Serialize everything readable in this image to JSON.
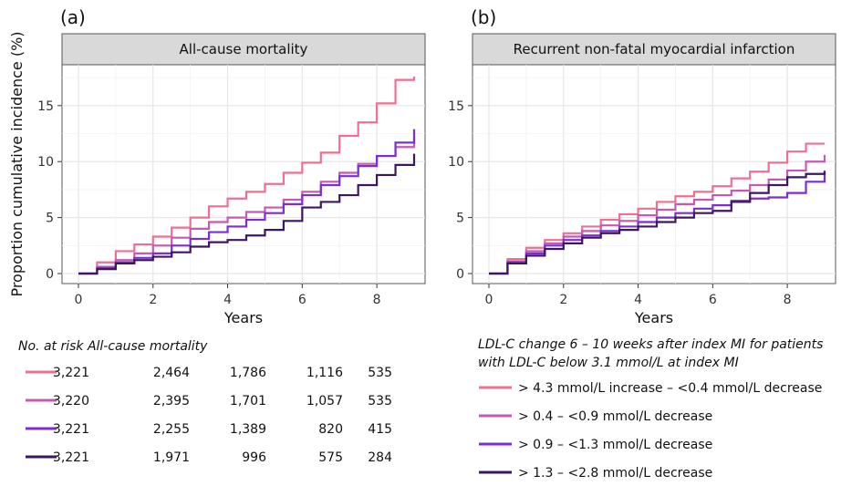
{
  "colors": [
    "#ee6f92",
    "#c45ab2",
    "#7a2fd6",
    "#3c1760"
  ],
  "y_axis_label": "Proportion cumulative incidence (%)",
  "chart_data": [
    {
      "type": "line",
      "panel": "(a)",
      "title": "All-cause mortality",
      "xlabel": "Years",
      "ylabel": "Proportion cumulative incidence (%)",
      "xlim": [
        0,
        9
      ],
      "ylim": [
        0,
        18
      ],
      "xticks": [
        0,
        2,
        4,
        6,
        8
      ],
      "yticks": [
        0,
        5,
        10,
        15
      ],
      "grid": true,
      "series": [
        {
          "name": "> 4.3 mmol/L increase – <0.4 mmol/L decrease",
          "x": [
            0,
            0.5,
            1,
            1.5,
            2,
            2.5,
            3,
            3.5,
            4,
            4.5,
            5,
            5.5,
            6,
            6.5,
            7,
            7.5,
            8,
            8.5,
            9
          ],
          "y": [
            0,
            1.0,
            2.0,
            2.6,
            3.3,
            4.1,
            5.0,
            6.0,
            6.7,
            7.3,
            8.0,
            9.0,
            9.9,
            10.8,
            12.3,
            13.5,
            15.2,
            17.3,
            17.6
          ]
        },
        {
          "name": "> 0.4 – <0.9 mmol/L decrease",
          "x": [
            0,
            0.5,
            1,
            1.5,
            2,
            2.5,
            3,
            3.5,
            4,
            4.5,
            5,
            5.5,
            6,
            6.5,
            7,
            7.5,
            8,
            8.5,
            9
          ],
          "y": [
            0,
            0.6,
            1.2,
            1.8,
            2.5,
            3.2,
            4.0,
            4.6,
            5.0,
            5.5,
            5.9,
            6.6,
            7.3,
            8.2,
            9.0,
            9.8,
            10.5,
            11.3,
            12.2
          ]
        },
        {
          "name": "> 0.9 – <1.3 mmol/L decrease",
          "x": [
            0,
            0.5,
            1,
            1.5,
            2,
            2.5,
            3,
            3.5,
            4,
            4.5,
            5,
            5.5,
            6,
            6.5,
            7,
            7.5,
            8,
            8.5,
            9
          ],
          "y": [
            0,
            0.5,
            1.0,
            1.4,
            1.8,
            2.5,
            3.1,
            3.7,
            4.2,
            4.8,
            5.4,
            6.2,
            7.0,
            7.9,
            8.7,
            9.6,
            10.5,
            11.7,
            12.9
          ]
        },
        {
          "name": "> 1.3 – <2.8 mmol/L decrease",
          "x": [
            0,
            0.5,
            1,
            1.5,
            2,
            2.5,
            3,
            3.5,
            4,
            4.5,
            5,
            5.5,
            6,
            6.5,
            7,
            7.5,
            8,
            8.5,
            9
          ],
          "y": [
            0,
            0.4,
            0.9,
            1.2,
            1.5,
            1.9,
            2.4,
            2.8,
            3.0,
            3.4,
            3.9,
            4.7,
            5.9,
            6.4,
            7.0,
            7.9,
            8.8,
            9.7,
            10.7
          ]
        }
      ]
    },
    {
      "type": "line",
      "panel": "(b)",
      "title": "Recurrent non-fatal myocardial infarction",
      "xlabel": "Years",
      "ylabel": "",
      "xlim": [
        0,
        9
      ],
      "ylim": [
        0,
        18
      ],
      "xticks": [
        0,
        2,
        4,
        6,
        8
      ],
      "yticks": [
        0,
        5,
        10,
        15
      ],
      "grid": true,
      "series": [
        {
          "name": "> 4.3 mmol/L increase – <0.4 mmol/L decrease",
          "x": [
            0,
            0.5,
            1,
            1.5,
            2,
            2.5,
            3,
            3.5,
            4,
            4.5,
            5,
            5.5,
            6,
            6.5,
            7,
            7.5,
            8,
            8.5,
            9
          ],
          "y": [
            0,
            1.3,
            2.3,
            3.0,
            3.6,
            4.2,
            4.8,
            5.3,
            5.8,
            6.4,
            6.9,
            7.3,
            7.8,
            8.5,
            9.1,
            9.9,
            10.9,
            11.6,
            11.6
          ]
        },
        {
          "name": "> 0.4 – <0.9 mmol/L decrease",
          "x": [
            0,
            0.5,
            1,
            1.5,
            2,
            2.5,
            3,
            3.5,
            4,
            4.5,
            5,
            5.5,
            6,
            6.5,
            7,
            7.5,
            8,
            8.5,
            9
          ],
          "y": [
            0,
            1.1,
            2.0,
            2.7,
            3.3,
            3.8,
            4.3,
            4.7,
            5.2,
            5.7,
            6.2,
            6.6,
            7.0,
            7.4,
            7.9,
            8.4,
            9.2,
            10.0,
            10.6
          ]
        },
        {
          "name": "> 0.9 – <1.3 mmol/L decrease",
          "x": [
            0,
            0.5,
            1,
            1.5,
            2,
            2.5,
            3,
            3.5,
            4,
            4.5,
            5,
            5.5,
            6,
            6.5,
            7,
            7.5,
            8,
            8.5,
            9
          ],
          "y": [
            0,
            1.0,
            1.8,
            2.5,
            3.0,
            3.4,
            3.8,
            4.2,
            4.6,
            5.0,
            5.4,
            5.8,
            6.1,
            6.5,
            6.7,
            6.8,
            7.2,
            8.2,
            9.2
          ]
        },
        {
          "name": "> 1.3 – <2.8 mmol/L decrease",
          "x": [
            0,
            0.5,
            1,
            1.5,
            2,
            2.5,
            3,
            3.5,
            4,
            4.5,
            5,
            5.5,
            6,
            6.5,
            7,
            7.5,
            8,
            8.5,
            9
          ],
          "y": [
            0,
            0.9,
            1.6,
            2.2,
            2.7,
            3.2,
            3.6,
            3.9,
            4.2,
            4.6,
            5.0,
            5.4,
            5.6,
            6.4,
            7.2,
            7.9,
            8.6,
            8.9,
            9.1
          ]
        }
      ]
    }
  ],
  "risk_table": {
    "title": "No. at risk All-cause mortality",
    "rows": [
      [
        "3,221",
        "2,464",
        "1,786",
        "1,116",
        "535"
      ],
      [
        "3,220",
        "2,395",
        "1,701",
        "1,057",
        "535"
      ],
      [
        "3,221",
        "2,255",
        "1,389",
        "820",
        "415"
      ],
      [
        "3,221",
        "1,971",
        "996",
        "575",
        "284"
      ]
    ]
  },
  "legend": {
    "title_line1": "LDL-C change 6 – 10 weeks after index MI for patients",
    "title_line2": "with LDL-C below 3.1 mmol/L at index MI",
    "items": [
      "> 4.3 mmol/L increase – <0.4 mmol/L decrease",
      "> 0.4 – <0.9 mmol/L decrease",
      "> 0.9 – <1.3 mmol/L decrease",
      "> 1.3 – <2.8 mmol/L decrease"
    ]
  }
}
